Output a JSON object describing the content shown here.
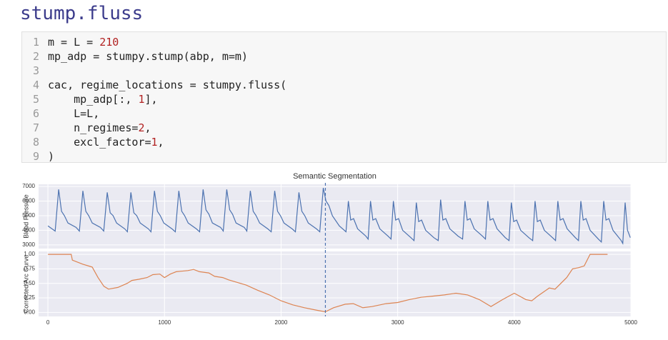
{
  "heading": "stump.fluss",
  "code": {
    "line_numbers": [
      1,
      2,
      3,
      4,
      5,
      6,
      7,
      8,
      9
    ],
    "lines": [
      "m = L = 210",
      "mp_adp = stumpy.stump(abp, m=m)",
      "",
      "cac, regime_locations = stumpy.fluss(",
      "    mp_adp[:, 1],",
      "    L=L,",
      "    n_regimes=2,",
      "    excl_factor=1,",
      ")"
    ]
  },
  "chart_data": [
    {
      "type": "line",
      "title": "Semantic Segmentation",
      "y_label": "Blood Pressure",
      "color": "#4c72b0",
      "grid": true,
      "xlim": [
        -80,
        5000
      ],
      "xticks": [
        0,
        1000,
        2000,
        3000,
        4000,
        5000
      ],
      "ylim": [
        2750,
        7150
      ],
      "yticks": [
        3000,
        4000,
        5000,
        6000,
        7000
      ],
      "vlines": [
        2380
      ],
      "x": [
        0,
        62,
        92,
        117,
        142,
        172,
        242,
        270,
        300,
        325,
        350,
        380,
        450,
        479,
        509,
        534,
        559,
        589,
        659,
        682,
        712,
        737,
        762,
        792,
        862,
        884,
        914,
        939,
        964,
        994,
        1064,
        1093,
        1123,
        1148,
        1173,
        1203,
        1273,
        1301,
        1331,
        1356,
        1381,
        1411,
        1481,
        1504,
        1534,
        1559,
        1584,
        1614,
        1684,
        1706,
        1736,
        1761,
        1786,
        1816,
        1886,
        1915,
        1945,
        1970,
        1995,
        2025,
        2095,
        2123,
        2153,
        2178,
        2203,
        2233,
        2303,
        2332,
        2362,
        2385,
        2410,
        2440,
        2500,
        2557,
        2577,
        2597,
        2622,
        2657,
        2727,
        2747,
        2767,
        2787,
        2812,
        2847,
        2917,
        2943,
        2963,
        2983,
        3008,
        3043,
        3113,
        3140,
        3160,
        3180,
        3205,
        3240,
        3310,
        3348,
        3368,
        3388,
        3413,
        3448,
        3518,
        3557,
        3577,
        3597,
        3622,
        3657,
        3727,
        3753,
        3773,
        3793,
        3818,
        3853,
        3923,
        3955,
        3975,
        3995,
        4020,
        4055,
        4125,
        4158,
        4178,
        4198,
        4223,
        4258,
        4328,
        4354,
        4374,
        4394,
        4419,
        4454,
        4524,
        4551,
        4571,
        4591,
        4616,
        4651,
        4721,
        4747,
        4767,
        4787,
        4812,
        4847,
        4917,
        4931,
        4951,
        4971,
        4996
      ],
      "values": [
        4300,
        3950,
        6800,
        5300,
        5000,
        4500,
        4200,
        3950,
        6700,
        5300,
        5000,
        4500,
        4200,
        3950,
        6600,
        5200,
        5000,
        4500,
        4100,
        3900,
        6600,
        5200,
        5000,
        4500,
        4100,
        3900,
        6700,
        5300,
        5000,
        4500,
        4100,
        3900,
        6700,
        5300,
        5000,
        4500,
        4100,
        3900,
        6800,
        5400,
        5100,
        4500,
        4200,
        3950,
        6800,
        5400,
        5100,
        4500,
        4200,
        3950,
        6700,
        5300,
        5000,
        4500,
        4100,
        3900,
        6700,
        5300,
        5000,
        4500,
        4100,
        3900,
        6600,
        5300,
        5000,
        4500,
        4100,
        3900,
        6900,
        6000,
        5700,
        5000,
        4300,
        3900,
        6000,
        4700,
        4800,
        4100,
        3600,
        3400,
        6000,
        4700,
        4800,
        4100,
        3600,
        3400,
        6000,
        4700,
        4800,
        4000,
        3500,
        3300,
        5900,
        4600,
        4700,
        4000,
        3500,
        3300,
        6100,
        4700,
        4800,
        4100,
        3600,
        3400,
        6000,
        4700,
        4800,
        4100,
        3600,
        3400,
        6000,
        4700,
        4800,
        4100,
        3500,
        3300,
        5900,
        4600,
        4700,
        4000,
        3500,
        3300,
        6000,
        4600,
        4700,
        4000,
        3500,
        3300,
        6000,
        4700,
        4800,
        4100,
        3500,
        3300,
        6000,
        4700,
        4800,
        4000,
        3400,
        3200,
        6000,
        4700,
        4800,
        4000,
        3300,
        3100,
        5900,
        4000,
        3500
      ]
    },
    {
      "type": "line",
      "y_label": "Corrected Arc Curve",
      "color": "#dd8452",
      "grid": true,
      "xlim": [
        -80,
        5000
      ],
      "xticks": [
        0,
        1000,
        2000,
        3000,
        4000,
        5000
      ],
      "ylim": [
        -0.07,
        1.05
      ],
      "yticks": [
        {
          "value": 0,
          "label": "0.00"
        },
        {
          "value": 0.25,
          "label": "0.25"
        },
        {
          "value": 0.5,
          "label": "0.50"
        },
        {
          "value": 0.75,
          "label": "0.75"
        },
        {
          "value": 1,
          "label": "1.00"
        }
      ],
      "vlines": [
        2380
      ],
      "x": [
        0,
        200,
        210,
        300,
        380,
        430,
        480,
        520,
        600,
        680,
        720,
        780,
        850,
        900,
        960,
        1000,
        1050,
        1100,
        1200,
        1250,
        1300,
        1380,
        1430,
        1500,
        1550,
        1700,
        1800,
        1900,
        2000,
        2100,
        2200,
        2300,
        2380,
        2450,
        2550,
        2620,
        2700,
        2780,
        2900,
        3000,
        3100,
        3200,
        3300,
        3400,
        3500,
        3600,
        3700,
        3800,
        3900,
        4000,
        4100,
        4150,
        4200,
        4300,
        4350,
        4450,
        4500,
        4550,
        4600,
        4650,
        4800
      ],
      "values": [
        1,
        1,
        0.9,
        0.83,
        0.78,
        0.6,
        0.45,
        0.4,
        0.43,
        0.5,
        0.55,
        0.57,
        0.6,
        0.65,
        0.66,
        0.6,
        0.66,
        0.7,
        0.72,
        0.74,
        0.7,
        0.68,
        0.62,
        0.6,
        0.56,
        0.47,
        0.38,
        0.3,
        0.2,
        0.13,
        0.08,
        0.04,
        0.01,
        0.08,
        0.14,
        0.15,
        0.08,
        0.1,
        0.15,
        0.17,
        0.22,
        0.26,
        0.28,
        0.3,
        0.33,
        0.3,
        0.22,
        0.1,
        0.22,
        0.33,
        0.22,
        0.2,
        0.28,
        0.42,
        0.4,
        0.6,
        0.75,
        0.77,
        0.8,
        1,
        1
      ]
    }
  ]
}
